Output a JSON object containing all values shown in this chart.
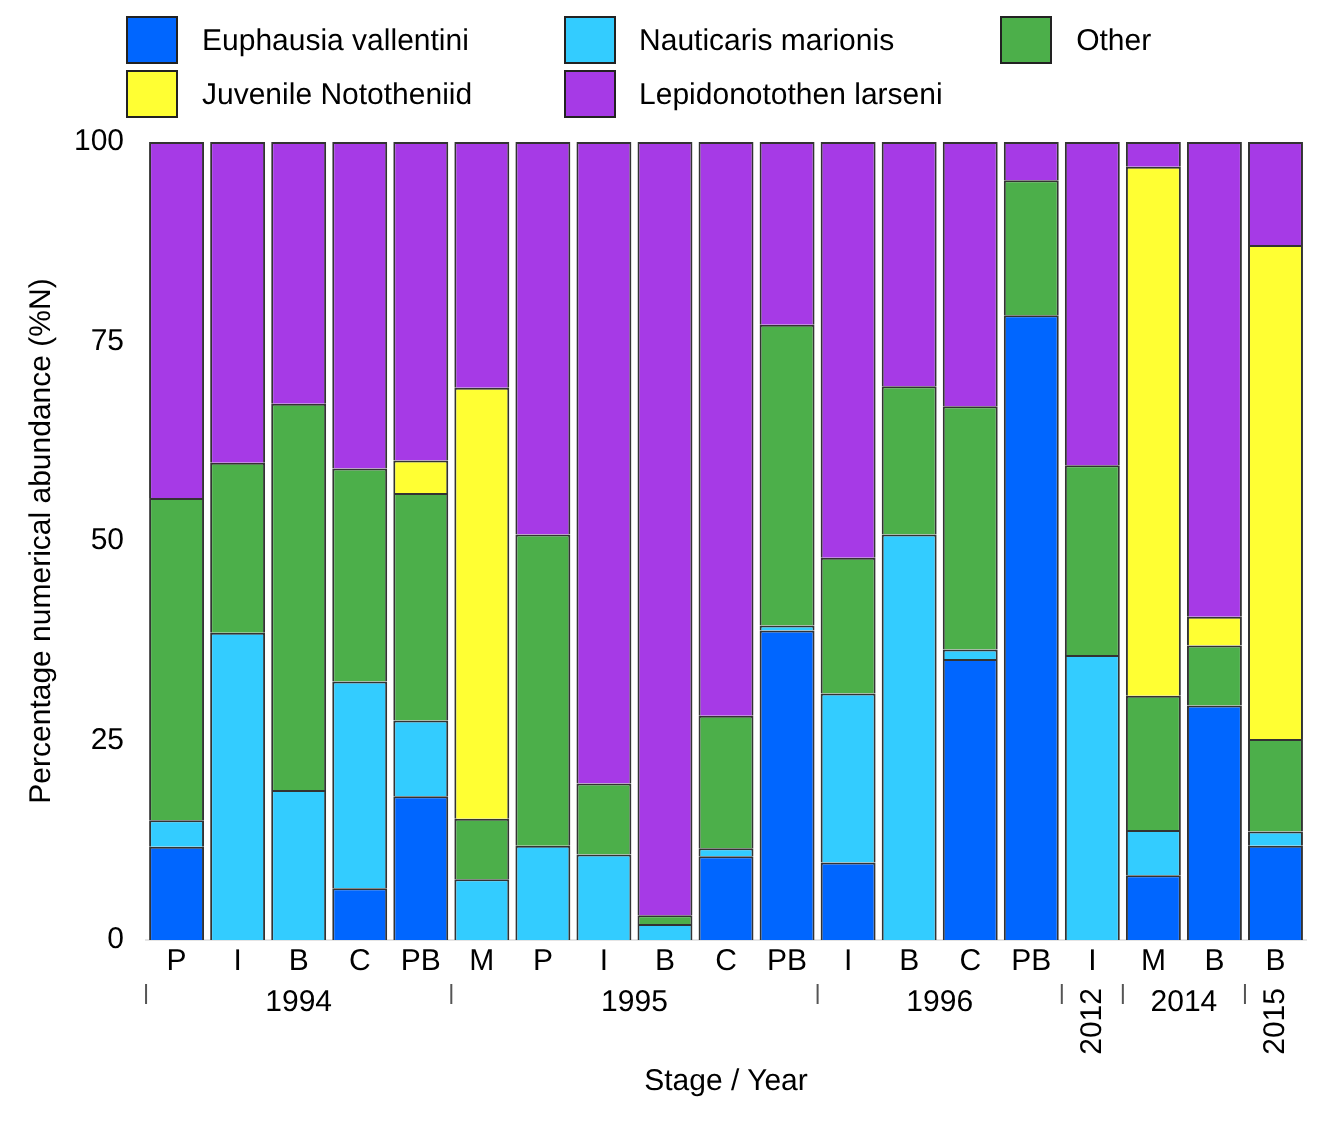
{
  "chart_data": {
    "type": "bar",
    "stacked": true,
    "xlabel": "Stage / Year",
    "ylabel": "Percentage numerical abundance (%N)",
    "categories": [
      "P",
      "I",
      "B",
      "C",
      "PB",
      "M",
      "P",
      "I",
      "B",
      "C",
      "PB",
      "I",
      "B",
      "C",
      "PB",
      "I",
      "M",
      "B",
      "B"
    ],
    "series": [
      {
        "name": "Euphausia vallentini",
        "color": "#0066ff",
        "values": [
          11.7,
          0,
          0,
          6.5,
          18.0,
          0,
          0,
          0,
          0,
          10.5,
          38.8,
          9.7,
          0,
          35.2,
          78.3,
          0,
          8.1,
          29.4,
          11.8
        ]
      },
      {
        "name": "Nauticaris marionis",
        "color": "#33ccff",
        "values": [
          3.3,
          38.5,
          18.8,
          25.9,
          9.5,
          7.6,
          11.8,
          10.7,
          2.0,
          1.0,
          0.6,
          21.2,
          50.8,
          1.2,
          0,
          35.7,
          5.7,
          0,
          1.8
        ]
      },
      {
        "name": "Other",
        "color": "#4caf4a",
        "values": [
          40.4,
          21.3,
          48.4,
          26.7,
          28.5,
          7.6,
          39.0,
          8.9,
          1.1,
          16.6,
          37.7,
          17.0,
          18.6,
          30.5,
          16.9,
          23.8,
          16.8,
          7.5,
          11.6
        ]
      },
      {
        "name": "Juvenile Nototheniid",
        "color": "#ffff33",
        "values": [
          0,
          0,
          0,
          0,
          4.1,
          54.0,
          0,
          0,
          0,
          0,
          0,
          0,
          0,
          0,
          0,
          0,
          66.3,
          3.6,
          61.9
        ]
      },
      {
        "name": "Lepidonotothen larseni",
        "color": "#a63ae6",
        "values": [
          44.6,
          40.2,
          32.8,
          40.9,
          39.9,
          30.8,
          49.2,
          80.4,
          96.9,
          71.9,
          22.9,
          52.1,
          30.6,
          33.1,
          4.8,
          40.5,
          3.1,
          59.5,
          12.9
        ]
      }
    ],
    "ylim": [
      0,
      100
    ],
    "yticks": [
      0,
      25,
      50,
      75,
      100
    ],
    "grid": false,
    "legend": "top",
    "annotations": [
      "1994",
      "1995",
      "1996",
      "2012",
      "2014",
      "2015"
    ]
  }
}
